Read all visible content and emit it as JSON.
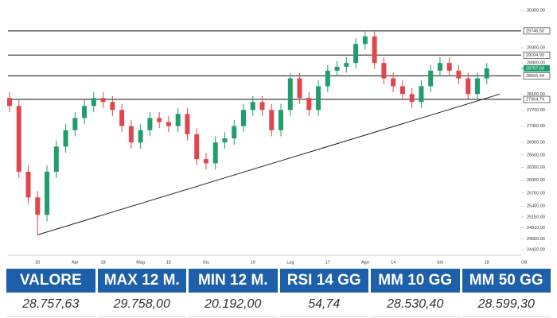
{
  "chart_data": {
    "type": "candlestick",
    "categories": [
      null,
      null,
      null,
      "20",
      null,
      null,
      null,
      "Apr",
      null,
      null,
      "18",
      null,
      null,
      null,
      "Mag",
      null,
      null,
      "15",
      null,
      null,
      null,
      "Giu",
      null,
      null,
      null,
      null,
      "19",
      null,
      null,
      null,
      "Lug",
      null,
      null,
      null,
      "17",
      null,
      null,
      null,
      "Ago",
      null,
      null,
      "14",
      null,
      null,
      null,
      null,
      "Set",
      null,
      null,
      null,
      null,
      "18",
      null,
      null,
      null,
      "Ott"
    ],
    "open": [
      28000,
      27800,
      26200,
      25600,
      25200,
      26200,
      26800,
      27200,
      27500,
      27800,
      28000,
      27900,
      27700,
      27300,
      26900,
      27200,
      27500,
      27400,
      27300,
      27600,
      27100,
      26500,
      26400,
      26900,
      27000,
      27300,
      27700,
      27900,
      27700,
      27200,
      27700,
      28500,
      28000,
      27700,
      28300,
      28700,
      28800,
      28900,
      29400,
      29600,
      28900,
      28500,
      28300,
      28100,
      27900,
      28300,
      28700,
      28900,
      28700,
      28500,
      28100,
      28500,
      null,
      null,
      null,
      null
    ],
    "high": [
      28150,
      27950,
      26350,
      25750,
      26350,
      26950,
      27350,
      27650,
      27950,
      28150,
      28150,
      28050,
      27850,
      27450,
      27350,
      27650,
      27650,
      27550,
      27750,
      27750,
      27250,
      26650,
      27050,
      27150,
      27450,
      27850,
      28050,
      28050,
      27850,
      27850,
      28650,
      28650,
      28150,
      28450,
      28850,
      28950,
      29050,
      29550,
      29760,
      29750,
      29050,
      28650,
      28450,
      28250,
      28450,
      28850,
      29050,
      29050,
      28850,
      28650,
      28650,
      28900,
      null,
      null,
      null,
      null
    ],
    "low": [
      27650,
      26050,
      25450,
      24750,
      25050,
      26050,
      26650,
      27050,
      27350,
      27650,
      27750,
      27550,
      27150,
      26750,
      26750,
      27050,
      27250,
      27150,
      27150,
      26950,
      26350,
      26250,
      26250,
      26750,
      26850,
      27150,
      27550,
      27550,
      27050,
      27050,
      27550,
      27850,
      27550,
      27550,
      28150,
      28550,
      28650,
      28750,
      29250,
      28750,
      28350,
      28150,
      27950,
      27750,
      27750,
      28150,
      28550,
      28550,
      28350,
      27950,
      27950,
      28350,
      null,
      null,
      null,
      null
    ],
    "close": [
      27800,
      26200,
      25600,
      25200,
      26200,
      26800,
      27200,
      27500,
      27800,
      28000,
      27900,
      27700,
      27300,
      26900,
      27200,
      27500,
      27400,
      27300,
      27600,
      27100,
      26500,
      26400,
      26900,
      27000,
      27300,
      27700,
      27900,
      27700,
      27200,
      27700,
      28500,
      28000,
      27700,
      28300,
      28700,
      28800,
      28900,
      29400,
      29600,
      28900,
      28500,
      28300,
      28100,
      27900,
      28300,
      28700,
      28900,
      28700,
      28500,
      28100,
      28500,
      28757.63,
      null,
      null,
      null,
      null
    ],
    "up_color": "#1f9d6b",
    "down_color": "#e0474c",
    "log": true,
    "ylim": [
      24300,
      30500
    ],
    "yticks": [
      {
        "value": 30300,
        "label": "30300.00"
      },
      {
        "value": 29300,
        "label": "29300.00"
      },
      {
        "value": 28900,
        "label": "28900.00"
      },
      {
        "value": 28100,
        "label": "28100.00"
      },
      {
        "value": 27700,
        "label": "27700.00"
      },
      {
        "value": 27300,
        "label": "27300.00"
      },
      {
        "value": 26900,
        "label": "26900.00"
      },
      {
        "value": 26600,
        "label": "26600.00"
      },
      {
        "value": 26300,
        "label": "26300.00"
      },
      {
        "value": 26000,
        "label": "26000.00"
      },
      {
        "value": 25700,
        "label": "25700.00"
      },
      {
        "value": 25400,
        "label": "25400.00"
      },
      {
        "value": 25150,
        "label": "25150.00"
      },
      {
        "value": 24910,
        "label": "24910.00"
      },
      {
        "value": 24660,
        "label": "24660.00"
      },
      {
        "value": 24420,
        "label": "24420.00"
      }
    ],
    "levels": [
      {
        "value": 29746.5,
        "label": "29746.50"
      },
      {
        "value": 29104.93,
        "label": "29104.93"
      },
      {
        "value": 28565.44,
        "label": "28565.44"
      },
      {
        "value": 27964.74,
        "label": "27964.74"
      }
    ],
    "last_price": {
      "value": 28757.63,
      "label": "28757.63"
    },
    "trendline": {
      "x": [
        3,
        52.4
      ],
      "values": [
        24750,
        28100
      ]
    }
  },
  "table": {
    "headers": [
      "VALORE",
      "MAX 12 M.",
      "MIN 12 M.",
      "RSI 14 GG",
      "MM 10 GG",
      "MM 50 GG"
    ],
    "values": [
      "28.757,63",
      "29.758,00",
      "20.192,00",
      "54,74",
      "28.530,40",
      "28.599,30"
    ]
  }
}
